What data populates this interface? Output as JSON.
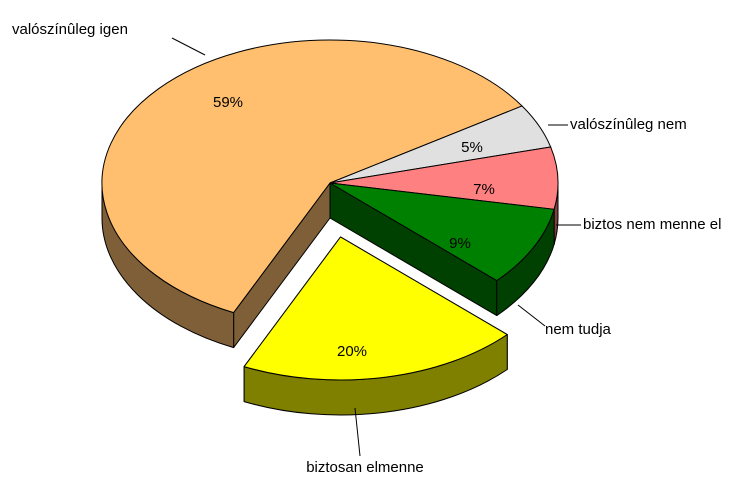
{
  "chart_data": {
    "type": "pie",
    "categories": [
      "valószínûleg igen",
      "valószínûleg nem",
      "biztos nem menne el",
      "nem tudja",
      "biztosan elmenne"
    ],
    "values": [
      59,
      5,
      7,
      9,
      20
    ],
    "value_labels": [
      "59%",
      "5%",
      "7%",
      "9%",
      "20%"
    ],
    "colors": [
      "#ffbf6f",
      "#e0e0e0",
      "#ff8080",
      "#008000",
      "#ffff00"
    ],
    "explode": [
      false,
      false,
      false,
      false,
      true
    ]
  }
}
